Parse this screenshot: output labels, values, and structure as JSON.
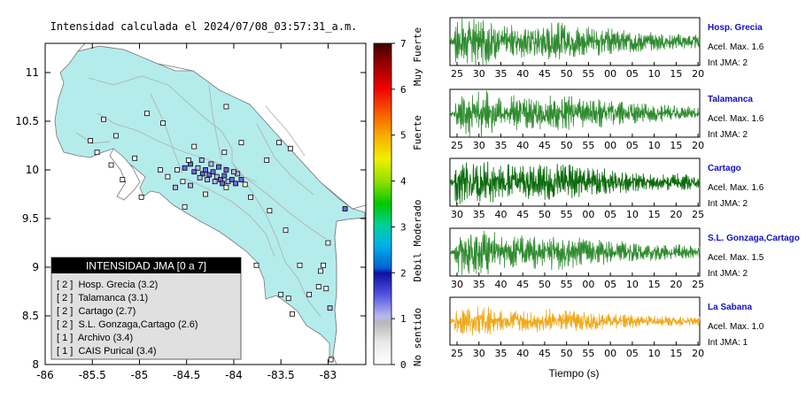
{
  "map": {
    "title": "Intensidad calculada el 2024/07/08_03:57:31_a.m.",
    "xlim": [
      -86,
      -82.6
    ],
    "ylim": [
      8,
      11.3
    ],
    "xticks": [
      -86,
      -85.5,
      -85,
      -84.5,
      -84,
      -83.5,
      -83
    ],
    "yticks": [
      8,
      8.5,
      9,
      9.5,
      10,
      10.5,
      11
    ],
    "xtick_labels": [
      "-86",
      "-85.5",
      "-85",
      "-84.5",
      "-84",
      "-83.5",
      "-83"
    ],
    "ytick_labels": [
      "8",
      "8.5",
      "9",
      "9.5",
      "10",
      "10.5",
      "11"
    ],
    "land_color": "#b4ecec",
    "station_intensities": [
      [
        -84.52,
        10.02,
        2
      ],
      [
        -84.46,
        10.06,
        2
      ],
      [
        -84.42,
        9.98,
        2
      ],
      [
        -84.38,
        10.02,
        1
      ],
      [
        -84.33,
        9.96,
        2
      ],
      [
        -84.3,
        10.0,
        2
      ],
      [
        -84.26,
        9.95,
        2
      ],
      [
        -84.22,
        9.98,
        2
      ],
      [
        -84.18,
        9.93,
        1
      ],
      [
        -84.14,
        9.9,
        2
      ],
      [
        -84.1,
        9.94,
        2
      ],
      [
        -84.06,
        9.88,
        1
      ],
      [
        -84.02,
        9.9,
        2
      ],
      [
        -83.98,
        9.86,
        2
      ],
      [
        -84.12,
        9.86,
        2
      ],
      [
        -84.2,
        9.88,
        1
      ],
      [
        -84.28,
        9.9,
        1
      ],
      [
        -84.36,
        9.92,
        1
      ],
      [
        -83.92,
        9.9,
        2
      ],
      [
        -83.96,
        9.96,
        1
      ],
      [
        -84.0,
        9.98,
        1
      ],
      [
        -84.08,
        10.0,
        2
      ],
      [
        -84.16,
        10.03,
        2
      ],
      [
        -84.24,
        10.06,
        1
      ],
      [
        -84.34,
        10.1,
        1
      ],
      [
        -84.48,
        10.1,
        0
      ],
      [
        -84.6,
        10.0,
        0
      ],
      [
        -84.7,
        9.93,
        0
      ],
      [
        -84.78,
        10.0,
        0
      ],
      [
        -84.62,
        9.82,
        1
      ],
      [
        -84.54,
        9.88,
        0
      ],
      [
        -84.46,
        9.84,
        1
      ],
      [
        -84.08,
        9.82,
        0
      ],
      [
        -83.88,
        9.85,
        0
      ],
      [
        -84.3,
        9.75,
        0
      ],
      [
        -84.52,
        9.62,
        0
      ],
      [
        -84.92,
        10.58,
        0
      ],
      [
        -84.75,
        10.48,
        0
      ],
      [
        -85.38,
        10.52,
        0
      ],
      [
        -85.25,
        10.35,
        0
      ],
      [
        -85.52,
        10.3,
        0
      ],
      [
        -85.45,
        10.18,
        0
      ],
      [
        -85.3,
        10.05,
        0
      ],
      [
        -85.18,
        9.9,
        0
      ],
      [
        -85.05,
        10.12,
        0
      ],
      [
        -84.98,
        9.72,
        0
      ],
      [
        -84.1,
        10.18,
        0
      ],
      [
        -83.92,
        10.28,
        0
      ],
      [
        -83.65,
        10.1,
        0
      ],
      [
        -83.52,
        10.28,
        0
      ],
      [
        -84.08,
        10.65,
        0
      ],
      [
        -84.42,
        10.24,
        0
      ],
      [
        -83.4,
        10.22,
        0
      ],
      [
        -83.82,
        9.72,
        0
      ],
      [
        -83.62,
        9.58,
        0
      ],
      [
        -83.45,
        9.38,
        0
      ],
      [
        -83.3,
        9.02,
        0
      ],
      [
        -83.08,
        8.96,
        0
      ],
      [
        -83.05,
        9.02,
        0
      ],
      [
        -83.5,
        8.72,
        0
      ],
      [
        -83.42,
        8.68,
        0
      ],
      [
        -83.2,
        8.72,
        0
      ],
      [
        -83.02,
        8.78,
        0
      ],
      [
        -82.98,
        8.58,
        1
      ],
      [
        -83.38,
        8.52,
        0
      ],
      [
        -82.82,
        9.6,
        2
      ],
      [
        -83.1,
        8.8,
        0
      ],
      [
        -82.97,
        8.05,
        0
      ],
      [
        -83.76,
        9.02,
        0
      ],
      [
        -83.0,
        9.25,
        0
      ]
    ]
  },
  "panel": {
    "title": "INTENSIDAD JMA [0 a 7]",
    "items": [
      "[ 2 ]  Hosp. Grecia (3.2)",
      "[ 2 ]  Talamanca (3.1)",
      "[ 2 ]  Cartago (2.7)",
      "[ 2 ]  S.L. Gonzaga,Cartago (2.6)",
      "[ 1 ]  Archivo (3.4)",
      "[ 1 ]  CAIS Purical (3.4)"
    ]
  },
  "colorbar": {
    "ticks": [
      "0",
      "1",
      "2",
      "3",
      "4",
      "5",
      "6",
      "7"
    ],
    "labels": [
      "No sentido",
      "Debil",
      "Moderado",
      "Fuerte",
      "Muy Fuerte"
    ]
  },
  "chart_data": [
    {
      "type": "line",
      "station": "Hosp. Grecia",
      "accel_label": "Acel. Max. 1.6",
      "int_label": "Int JMA: 2",
      "color": "#2e8b2e",
      "tick_labels": [
        "25",
        "30",
        "35",
        "40",
        "45",
        "50",
        "55",
        "00",
        "05",
        "10",
        "15",
        "20"
      ],
      "peak_amplitude": 1.6
    },
    {
      "type": "line",
      "station": "Talamanca",
      "accel_label": "Acel. Max. 1.6",
      "int_label": "Int JMA: 2",
      "color": "#2e8b2e",
      "tick_labels": [
        "25",
        "30",
        "35",
        "40",
        "45",
        "50",
        "55",
        "00",
        "05",
        "10",
        "15",
        "20"
      ],
      "peak_amplitude": 1.6
    },
    {
      "type": "line",
      "station": "Cartago",
      "accel_label": "Acel. Max. 1.6",
      "int_label": "Int JMA: 2",
      "color": "#0b6b0b",
      "tick_labels": [
        "30",
        "35",
        "40",
        "45",
        "50",
        "55",
        "00",
        "05",
        "10",
        "15",
        "20",
        "25"
      ],
      "peak_amplitude": 1.6
    },
    {
      "type": "line",
      "station": "S.L. Gonzaga,Cartago",
      "accel_label": "Acel. Max. 1.5",
      "int_label": "Int JMA: 2",
      "color": "#2e8b2e",
      "tick_labels": [
        "30",
        "35",
        "40",
        "45",
        "50",
        "55",
        "00",
        "05",
        "10",
        "15",
        "20",
        "25"
      ],
      "peak_amplitude": 1.5
    },
    {
      "type": "line",
      "station": "La Sabana",
      "accel_label": "Acel. Max. 1.0",
      "int_label": "Int JMA: 1",
      "color": "#f0a818",
      "tick_labels": [
        "25",
        "30",
        "35",
        "40",
        "45",
        "50",
        "55",
        "00",
        "05",
        "10",
        "15",
        "20"
      ],
      "peak_amplitude": 1.0
    }
  ],
  "xaxis_label": "Tiempo (s)",
  "colors": {
    "station_name": "#1010c8",
    "panel_header_bg": "#000000",
    "panel_bg": "#e0e0e0"
  }
}
